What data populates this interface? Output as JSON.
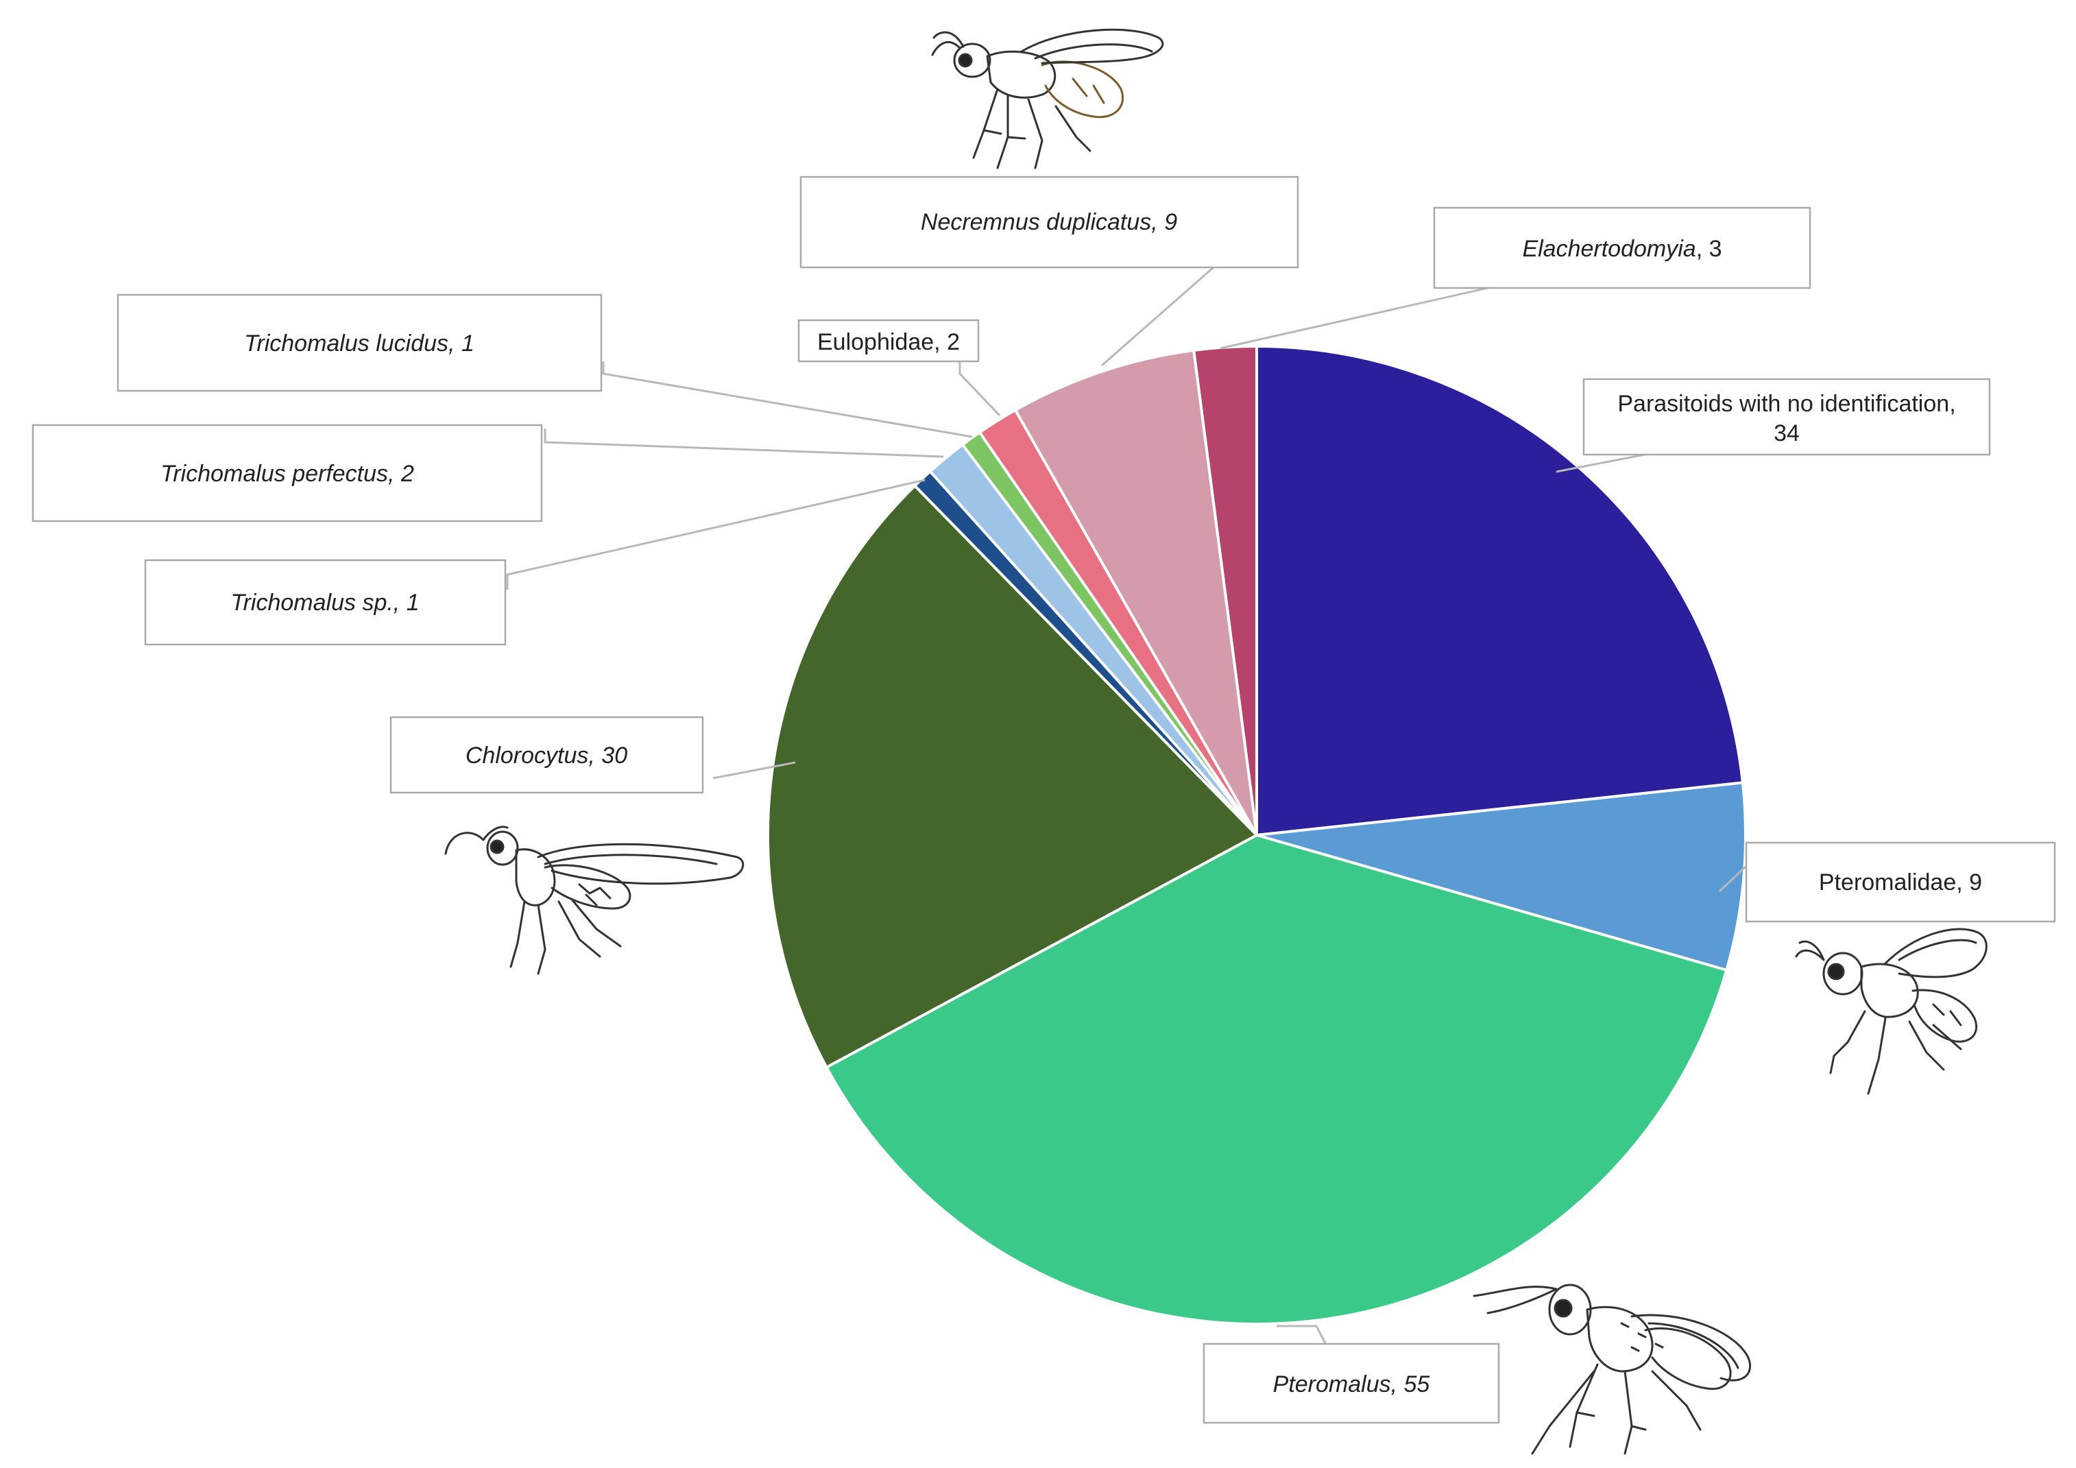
{
  "chart_data": {
    "type": "pie",
    "title": "",
    "start_angle_deg": 0,
    "direction": "clockwise",
    "slices": [
      {
        "label": "Parasitoids with no identification",
        "value": 34,
        "value_text": "34",
        "italic": false,
        "color": "#2B1F9C"
      },
      {
        "label": "Pteromalidae",
        "value": 9,
        "value_text": "9",
        "italic": false,
        "color": "#5B9BD5"
      },
      {
        "label": "Pteromalus",
        "value": 55,
        "value_text": "55",
        "italic": true,
        "color": "#3AC988"
      },
      {
        "label": "Chlorocytus",
        "value": 30,
        "value_text": "30",
        "italic": true,
        "color": "#44662B"
      },
      {
        "label": "Trichomalus sp.",
        "value": 1,
        "value_text": "1",
        "italic": true,
        "color": "#1F4E8C"
      },
      {
        "label": "Trichomalus perfectus",
        "value": 2,
        "value_text": "2",
        "italic": true,
        "color": "#9DC3E6"
      },
      {
        "label": "Trichomalus lucidus",
        "value": 1,
        "value_text": "1",
        "italic": true,
        "color": "#7DC463"
      },
      {
        "label": "Eulophidae",
        "value": 2,
        "value_text": "2",
        "italic": false,
        "color": "#E87083"
      },
      {
        "label": "Necremnus duplicatus",
        "value": 9,
        "value_text": "9",
        "italic": true,
        "color": "#D49BAA"
      },
      {
        "label": "Elachertodomyia",
        "value": 3,
        "value_text": "3",
        "italic": true,
        "color": "#B5436E"
      }
    ]
  }
}
